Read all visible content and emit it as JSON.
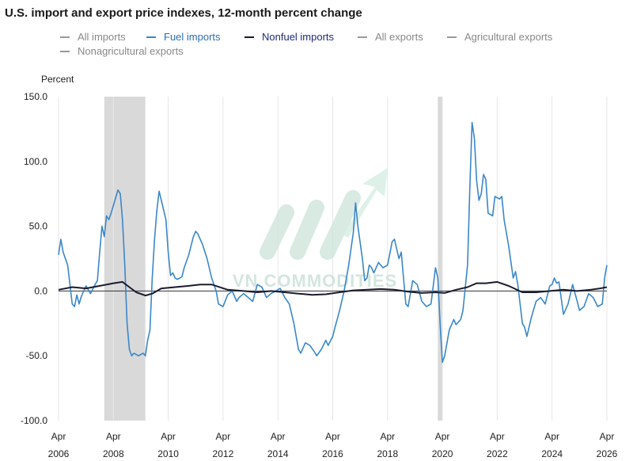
{
  "chart_title": "U.S. import and export price indexes, 12-month percent change",
  "watermark": "VN COMMODITIES",
  "colors": {
    "fuel": "#3b87c8",
    "nonfuel": "#1b1b2e",
    "legend_inactive": "#999999",
    "legend_fuel_text": "#2d6fb0",
    "legend_nonfuel_text": "#1f2a7a",
    "recession": "#d9d9d9",
    "zero_line": "#333333",
    "grid": "#e6e6e6"
  },
  "chart_data": {
    "type": "line",
    "title": "U.S. import and export price indexes, 12-month percent change",
    "ylabel": "Percent",
    "ylim": [
      -100,
      150
    ],
    "yticks": [
      -100,
      -50,
      0,
      50,
      100,
      150
    ],
    "ytick_labels": [
      "-100.0",
      "-50.0",
      "0.0",
      "50.0",
      "100.0",
      "150.0"
    ],
    "xlim": [
      "2006-04",
      "2026-04"
    ],
    "xticks": [
      {
        "month": "Apr",
        "year": "2006"
      },
      {
        "month": "Apr",
        "year": "2008"
      },
      {
        "month": "Apr",
        "year": "2010"
      },
      {
        "month": "Apr",
        "year": "2012"
      },
      {
        "month": "Apr",
        "year": "2014"
      },
      {
        "month": "Apr",
        "year": "2016"
      },
      {
        "month": "Apr",
        "year": "2018"
      },
      {
        "month": "Apr",
        "year": "2020"
      },
      {
        "month": "Apr",
        "year": "2022"
      },
      {
        "month": "Apr",
        "year": "2024"
      },
      {
        "month": "Apr",
        "year": "2026"
      }
    ],
    "grid": "vertical",
    "legend_placement": "top",
    "legend": [
      {
        "label": "All imports",
        "active": false
      },
      {
        "label": "Fuel imports",
        "active": true
      },
      {
        "label": "Nonfuel imports",
        "active": true
      },
      {
        "label": "All exports",
        "active": false
      },
      {
        "label": "Agricultural exports",
        "active": false
      },
      {
        "label": "Nonagricultural exports",
        "active": false
      }
    ],
    "shaded_periods": [
      {
        "start": "2007-12",
        "end": "2009-06"
      },
      {
        "start": "2020-02",
        "end": "2020-04"
      }
    ],
    "series": [
      {
        "name": "Fuel imports",
        "points": [
          [
            "2006-04",
            28
          ],
          [
            "2006-05",
            40
          ],
          [
            "2006-06",
            30
          ],
          [
            "2006-08",
            20
          ],
          [
            "2006-10",
            -10
          ],
          [
            "2006-11",
            -12
          ],
          [
            "2006-12",
            -3
          ],
          [
            "2007-01",
            -10
          ],
          [
            "2007-02",
            -4
          ],
          [
            "2007-04",
            4
          ],
          [
            "2007-06",
            -2
          ],
          [
            "2007-08",
            5
          ],
          [
            "2007-09",
            8
          ],
          [
            "2007-10",
            30
          ],
          [
            "2007-11",
            50
          ],
          [
            "2007-12",
            42
          ],
          [
            "2008-01",
            58
          ],
          [
            "2008-02",
            55
          ],
          [
            "2008-03",
            60
          ],
          [
            "2008-05",
            72
          ],
          [
            "2008-06",
            78
          ],
          [
            "2008-07",
            75
          ],
          [
            "2008-08",
            55
          ],
          [
            "2008-09",
            20
          ],
          [
            "2008-10",
            -25
          ],
          [
            "2008-11",
            -45
          ],
          [
            "2008-12",
            -50
          ],
          [
            "2009-01",
            -48
          ],
          [
            "2009-03",
            -50
          ],
          [
            "2009-05",
            -48
          ],
          [
            "2009-06",
            -50
          ],
          [
            "2009-07",
            -38
          ],
          [
            "2009-08",
            -30
          ],
          [
            "2009-09",
            10
          ],
          [
            "2009-10",
            40
          ],
          [
            "2009-11",
            62
          ],
          [
            "2009-12",
            77
          ],
          [
            "2010-01",
            70
          ],
          [
            "2010-03",
            55
          ],
          [
            "2010-04",
            30
          ],
          [
            "2010-05",
            12
          ],
          [
            "2010-06",
            14
          ],
          [
            "2010-07",
            10
          ],
          [
            "2010-08",
            9
          ],
          [
            "2010-10",
            11
          ],
          [
            "2010-11",
            18
          ],
          [
            "2011-01",
            28
          ],
          [
            "2011-03",
            42
          ],
          [
            "2011-04",
            46
          ],
          [
            "2011-05",
            44
          ],
          [
            "2011-07",
            36
          ],
          [
            "2011-09",
            25
          ],
          [
            "2011-11",
            10
          ],
          [
            "2012-01",
            0
          ],
          [
            "2012-02",
            -10
          ],
          [
            "2012-04",
            -12
          ],
          [
            "2012-06",
            -3
          ],
          [
            "2012-08",
            0
          ],
          [
            "2012-10",
            -8
          ],
          [
            "2012-11",
            -5
          ],
          [
            "2013-01",
            -2
          ],
          [
            "2013-03",
            -5
          ],
          [
            "2013-05",
            -8
          ],
          [
            "2013-07",
            5
          ],
          [
            "2013-09",
            3
          ],
          [
            "2013-11",
            -5
          ],
          [
            "2014-01",
            -2
          ],
          [
            "2014-03",
            0
          ],
          [
            "2014-05",
            2
          ],
          [
            "2014-07",
            -5
          ],
          [
            "2014-09",
            -10
          ],
          [
            "2014-11",
            -25
          ],
          [
            "2015-01",
            -45
          ],
          [
            "2015-02",
            -48
          ],
          [
            "2015-04",
            -40
          ],
          [
            "2015-06",
            -42
          ],
          [
            "2015-08",
            -47
          ],
          [
            "2015-09",
            -50
          ],
          [
            "2015-11",
            -45
          ],
          [
            "2016-01",
            -38
          ],
          [
            "2016-02",
            -42
          ],
          [
            "2016-04",
            -35
          ],
          [
            "2016-05",
            -28
          ],
          [
            "2016-07",
            -15
          ],
          [
            "2016-09",
            0
          ],
          [
            "2016-11",
            20
          ],
          [
            "2017-01",
            45
          ],
          [
            "2017-02",
            68
          ],
          [
            "2017-03",
            50
          ],
          [
            "2017-05",
            25
          ],
          [
            "2017-06",
            8
          ],
          [
            "2017-07",
            10
          ],
          [
            "2017-08",
            20
          ],
          [
            "2017-09",
            18
          ],
          [
            "2017-10",
            14
          ],
          [
            "2017-12",
            22
          ],
          [
            "2018-02",
            18
          ],
          [
            "2018-04",
            20
          ],
          [
            "2018-06",
            38
          ],
          [
            "2018-07",
            40
          ],
          [
            "2018-09",
            25
          ],
          [
            "2018-10",
            30
          ],
          [
            "2018-12",
            -10
          ],
          [
            "2019-01",
            -12
          ],
          [
            "2019-03",
            8
          ],
          [
            "2019-05",
            5
          ],
          [
            "2019-07",
            -8
          ],
          [
            "2019-09",
            -12
          ],
          [
            "2019-11",
            -10
          ],
          [
            "2020-01",
            18
          ],
          [
            "2020-02",
            10
          ],
          [
            "2020-03",
            -25
          ],
          [
            "2020-04",
            -55
          ],
          [
            "2020-05",
            -50
          ],
          [
            "2020-07",
            -30
          ],
          [
            "2020-09",
            -22
          ],
          [
            "2020-10",
            -26
          ],
          [
            "2020-12",
            -22
          ],
          [
            "2021-01",
            -15
          ],
          [
            "2021-03",
            20
          ],
          [
            "2021-04",
            80
          ],
          [
            "2021-05",
            130
          ],
          [
            "2021-06",
            118
          ],
          [
            "2021-07",
            85
          ],
          [
            "2021-08",
            70
          ],
          [
            "2021-09",
            75
          ],
          [
            "2021-10",
            90
          ],
          [
            "2021-11",
            86
          ],
          [
            "2021-12",
            60
          ],
          [
            "2022-02",
            58
          ],
          [
            "2022-03",
            73
          ],
          [
            "2022-05",
            71
          ],
          [
            "2022-06",
            73
          ],
          [
            "2022-07",
            55
          ],
          [
            "2022-09",
            35
          ],
          [
            "2022-11",
            10
          ],
          [
            "2022-12",
            15
          ],
          [
            "2023-01",
            5
          ],
          [
            "2023-03",
            -25
          ],
          [
            "2023-04",
            -28
          ],
          [
            "2023-05",
            -35
          ],
          [
            "2023-07",
            -20
          ],
          [
            "2023-09",
            -8
          ],
          [
            "2023-11",
            -5
          ],
          [
            "2024-01",
            -10
          ],
          [
            "2024-03",
            4
          ],
          [
            "2024-04",
            5
          ],
          [
            "2024-05",
            10
          ],
          [
            "2024-06",
            6
          ],
          [
            "2024-07",
            7
          ],
          [
            "2024-09",
            -18
          ],
          [
            "2024-11",
            -10
          ],
          [
            "2025-01",
            5
          ],
          [
            "2025-03",
            -8
          ],
          [
            "2025-04",
            -15
          ],
          [
            "2025-06",
            -12
          ],
          [
            "2025-08",
            -2
          ],
          [
            "2025-10",
            -5
          ],
          [
            "2025-12",
            -12
          ],
          [
            "2026-02",
            -10
          ],
          [
            "2026-03",
            10
          ],
          [
            "2026-04",
            20
          ]
        ]
      },
      {
        "name": "Nonfuel imports",
        "points": [
          [
            "2006-04",
            1
          ],
          [
            "2006-10",
            3
          ],
          [
            "2007-04",
            2
          ],
          [
            "2007-10",
            4
          ],
          [
            "2008-04",
            6
          ],
          [
            "2008-08",
            7
          ],
          [
            "2008-11",
            3
          ],
          [
            "2009-02",
            -1
          ],
          [
            "2009-06",
            -3.5
          ],
          [
            "2009-09",
            -2
          ],
          [
            "2010-01",
            2
          ],
          [
            "2010-07",
            3
          ],
          [
            "2011-01",
            4
          ],
          [
            "2011-06",
            5
          ],
          [
            "2011-11",
            5
          ],
          [
            "2012-06",
            1
          ],
          [
            "2013-01",
            0
          ],
          [
            "2013-07",
            -1
          ],
          [
            "2014-01",
            0
          ],
          [
            "2014-07",
            -1
          ],
          [
            "2015-01",
            -2
          ],
          [
            "2015-07",
            -3
          ],
          [
            "2016-01",
            -2.5
          ],
          [
            "2016-07",
            -1
          ],
          [
            "2017-01",
            0.5
          ],
          [
            "2017-07",
            1
          ],
          [
            "2018-01",
            1.5
          ],
          [
            "2018-07",
            1
          ],
          [
            "2019-01",
            -0.5
          ],
          [
            "2019-07",
            -1.5
          ],
          [
            "2020-01",
            -1
          ],
          [
            "2020-05",
            -1.5
          ],
          [
            "2020-10",
            1
          ],
          [
            "2021-03",
            3
          ],
          [
            "2021-07",
            6
          ],
          [
            "2021-11",
            6
          ],
          [
            "2022-04",
            7
          ],
          [
            "2022-09",
            4
          ],
          [
            "2023-03",
            -1
          ],
          [
            "2023-09",
            -1
          ],
          [
            "2024-03",
            0
          ],
          [
            "2024-09",
            1
          ],
          [
            "2025-03",
            0
          ],
          [
            "2025-09",
            1
          ],
          [
            "2026-01",
            2
          ],
          [
            "2026-04",
            3
          ]
        ]
      }
    ]
  }
}
